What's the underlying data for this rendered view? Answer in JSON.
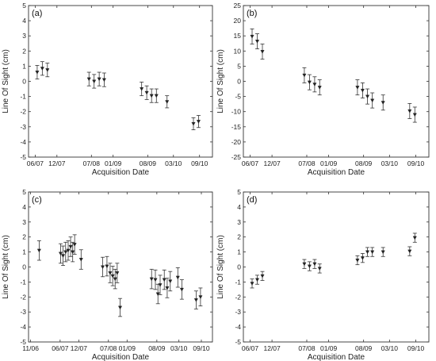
{
  "chart_data": [
    {
      "type": "scatter",
      "panel_label": "(a)",
      "xlabel": "Acquisition Date",
      "ylabel": "Line Of Sight (cm)",
      "xlim": [
        "2006-05-15",
        "2009-12-01"
      ],
      "ylim": [
        -5,
        5
      ],
      "y_ticks": [
        -5,
        -4,
        -3,
        -2,
        -1,
        0,
        1,
        2,
        3,
        4,
        5
      ],
      "x_ticks": [
        {
          "label": "06/07",
          "date": "2006-07-01"
        },
        {
          "label": "12/07",
          "date": "2006-12-01"
        },
        {
          "label": "07/08",
          "date": "2007-08-01"
        },
        {
          "label": "01/09",
          "date": "2008-01-01"
        },
        {
          "label": "08/09",
          "date": "2008-09-01"
        },
        {
          "label": "03/10",
          "date": "2009-03-01"
        },
        {
          "label": "09/10",
          "date": "2009-09-01"
        }
      ],
      "points": [
        {
          "date": "2006-07-15",
          "y": 0.6,
          "err": 0.45
        },
        {
          "date": "2006-08-20",
          "y": 0.85,
          "err": 0.45
        },
        {
          "date": "2006-09-25",
          "y": 0.75,
          "err": 0.45
        },
        {
          "date": "2007-07-15",
          "y": 0.15,
          "err": 0.45
        },
        {
          "date": "2007-08-20",
          "y": 0.0,
          "err": 0.45
        },
        {
          "date": "2007-09-25",
          "y": 0.15,
          "err": 0.45
        },
        {
          "date": "2007-10-30",
          "y": 0.1,
          "err": 0.45
        },
        {
          "date": "2008-07-20",
          "y": -0.5,
          "err": 0.45
        },
        {
          "date": "2008-08-25",
          "y": -0.75,
          "err": 0.45
        },
        {
          "date": "2008-09-28",
          "y": -0.95,
          "err": 0.45
        },
        {
          "date": "2008-11-01",
          "y": -0.95,
          "err": 0.45
        },
        {
          "date": "2009-01-15",
          "y": -1.35,
          "err": 0.4
        },
        {
          "date": "2009-07-20",
          "y": -2.8,
          "err": 0.4
        },
        {
          "date": "2009-08-25",
          "y": -2.65,
          "err": 0.4
        }
      ]
    },
    {
      "type": "scatter",
      "panel_label": "(b)",
      "xlabel": "Acquisition Date",
      "ylabel": "Line Of Sight (cm)",
      "xlim": [
        "2006-05-15",
        "2009-12-01"
      ],
      "ylim": [
        -25,
        25
      ],
      "y_ticks": [
        -25,
        -20,
        -15,
        -10,
        -5,
        0,
        5,
        10,
        15,
        20,
        25
      ],
      "x_ticks": [
        {
          "label": "06/07",
          "date": "2006-07-01"
        },
        {
          "label": "12/07",
          "date": "2006-12-01"
        },
        {
          "label": "07/08",
          "date": "2007-08-01"
        },
        {
          "label": "01/09",
          "date": "2008-01-01"
        },
        {
          "label": "08/09",
          "date": "2008-09-01"
        },
        {
          "label": "03/10",
          "date": "2009-03-01"
        },
        {
          "label": "09/10",
          "date": "2009-09-01"
        }
      ],
      "points": [
        {
          "date": "2006-07-15",
          "y": 14.8,
          "err": 2.5
        },
        {
          "date": "2006-08-20",
          "y": 13.2,
          "err": 2.5
        },
        {
          "date": "2006-09-25",
          "y": 9.8,
          "err": 2.5
        },
        {
          "date": "2007-07-15",
          "y": 2.0,
          "err": 2.5
        },
        {
          "date": "2007-08-20",
          "y": -0.3,
          "err": 2.5
        },
        {
          "date": "2007-09-25",
          "y": -1.0,
          "err": 2.5
        },
        {
          "date": "2007-10-30",
          "y": -2.0,
          "err": 2.5
        },
        {
          "date": "2008-07-20",
          "y": -2.0,
          "err": 2.5
        },
        {
          "date": "2008-08-25",
          "y": -3.0,
          "err": 2.5
        },
        {
          "date": "2008-09-28",
          "y": -5.0,
          "err": 2.5
        },
        {
          "date": "2008-11-01",
          "y": -6.3,
          "err": 2.5
        },
        {
          "date": "2009-01-15",
          "y": -7.0,
          "err": 2.5
        },
        {
          "date": "2009-07-20",
          "y": -9.8,
          "err": 2.5
        },
        {
          "date": "2009-08-25",
          "y": -11.0,
          "err": 2.5
        }
      ]
    },
    {
      "type": "scatter",
      "panel_label": "(c)",
      "xlabel": "Acquisition Date",
      "ylabel": "Line Of Sight (cm)",
      "xlim": [
        "2005-10-15",
        "2009-12-01"
      ],
      "ylim": [
        -5,
        5
      ],
      "y_ticks": [
        -5,
        -4,
        -3,
        -2,
        -1,
        0,
        1,
        2,
        3,
        4,
        5
      ],
      "x_ticks": [
        {
          "label": "11/06",
          "date": "2005-11-01"
        },
        {
          "label": "06/07",
          "date": "2006-07-01"
        },
        {
          "label": "12/07",
          "date": "2006-12-01"
        },
        {
          "label": "07/08",
          "date": "2007-08-01"
        },
        {
          "label": "01/09",
          "date": "2008-01-01"
        },
        {
          "label": "08/09",
          "date": "2008-09-01"
        },
        {
          "label": "03/10",
          "date": "2009-03-01"
        },
        {
          "label": "09/10",
          "date": "2009-09-01"
        }
      ],
      "points": [
        {
          "date": "2006-01-10",
          "y": 1.1,
          "err": 0.65
        },
        {
          "date": "2006-07-05",
          "y": 0.9,
          "err": 0.65
        },
        {
          "date": "2006-07-25",
          "y": 0.75,
          "err": 0.65
        },
        {
          "date": "2006-08-15",
          "y": 1.0,
          "err": 0.65
        },
        {
          "date": "2006-09-05",
          "y": 1.1,
          "err": 0.65
        },
        {
          "date": "2006-09-25",
          "y": 1.35,
          "err": 0.65
        },
        {
          "date": "2006-10-12",
          "y": 1.0,
          "err": 0.65
        },
        {
          "date": "2006-10-28",
          "y": 1.5,
          "err": 0.65
        },
        {
          "date": "2006-12-20",
          "y": 0.5,
          "err": 0.65
        },
        {
          "date": "2007-06-15",
          "y": 0.0,
          "err": 0.65
        },
        {
          "date": "2007-07-20",
          "y": 0.05,
          "err": 0.65
        },
        {
          "date": "2007-08-15",
          "y": -0.4,
          "err": 0.65
        },
        {
          "date": "2007-09-05",
          "y": -0.6,
          "err": 0.65
        },
        {
          "date": "2007-09-25",
          "y": -0.8,
          "err": 0.65
        },
        {
          "date": "2007-10-12",
          "y": -0.4,
          "err": 0.65
        },
        {
          "date": "2007-11-05",
          "y": -2.7,
          "err": 0.6
        },
        {
          "date": "2008-07-20",
          "y": -0.8,
          "err": 0.65
        },
        {
          "date": "2008-08-20",
          "y": -0.85,
          "err": 0.65
        },
        {
          "date": "2008-09-10",
          "y": -1.8,
          "err": 0.65
        },
        {
          "date": "2008-09-28",
          "y": -1.2,
          "err": 0.65
        },
        {
          "date": "2008-11-01",
          "y": -0.85,
          "err": 0.65
        },
        {
          "date": "2008-11-25",
          "y": -1.4,
          "err": 0.65
        },
        {
          "date": "2008-12-20",
          "y": -0.95,
          "err": 0.65
        },
        {
          "date": "2009-02-20",
          "y": -0.7,
          "err": 0.65
        },
        {
          "date": "2009-03-25",
          "y": -1.5,
          "err": 0.65
        },
        {
          "date": "2009-07-20",
          "y": -2.2,
          "err": 0.6
        },
        {
          "date": "2009-08-25",
          "y": -2.0,
          "err": 0.6
        }
      ]
    },
    {
      "type": "scatter",
      "panel_label": "(d)",
      "xlabel": "Acquisition Date",
      "ylabel": "Line Of Sight (cm)",
      "xlim": [
        "2006-05-15",
        "2009-12-01"
      ],
      "ylim": [
        -5,
        5
      ],
      "y_ticks": [
        -5,
        -4,
        -3,
        -2,
        -1,
        0,
        1,
        2,
        3,
        4,
        5
      ],
      "x_ticks": [
        {
          "label": "06/07",
          "date": "2006-07-01"
        },
        {
          "label": "12/07",
          "date": "2006-12-01"
        },
        {
          "label": "07/08",
          "date": "2007-08-01"
        },
        {
          "label": "01/09",
          "date": "2008-01-01"
        },
        {
          "label": "08/09",
          "date": "2008-09-01"
        },
        {
          "label": "03/10",
          "date": "2009-03-01"
        },
        {
          "label": "09/10",
          "date": "2009-09-01"
        }
      ],
      "points": [
        {
          "date": "2006-07-15",
          "y": -1.1,
          "err": 0.3
        },
        {
          "date": "2006-08-20",
          "y": -0.85,
          "err": 0.3
        },
        {
          "date": "2006-09-25",
          "y": -0.6,
          "err": 0.3
        },
        {
          "date": "2007-07-15",
          "y": 0.2,
          "err": 0.3
        },
        {
          "date": "2007-08-20",
          "y": 0.05,
          "err": 0.3
        },
        {
          "date": "2007-09-25",
          "y": 0.2,
          "err": 0.3
        },
        {
          "date": "2007-10-30",
          "y": -0.1,
          "err": 0.3
        },
        {
          "date": "2008-07-20",
          "y": 0.45,
          "err": 0.3
        },
        {
          "date": "2008-08-25",
          "y": 0.6,
          "err": 0.3
        },
        {
          "date": "2008-09-28",
          "y": 1.0,
          "err": 0.3
        },
        {
          "date": "2008-11-01",
          "y": 1.0,
          "err": 0.3
        },
        {
          "date": "2009-01-15",
          "y": 1.0,
          "err": 0.3
        },
        {
          "date": "2009-07-20",
          "y": 1.05,
          "err": 0.3
        },
        {
          "date": "2009-08-25",
          "y": 1.95,
          "err": 0.3
        }
      ]
    }
  ]
}
